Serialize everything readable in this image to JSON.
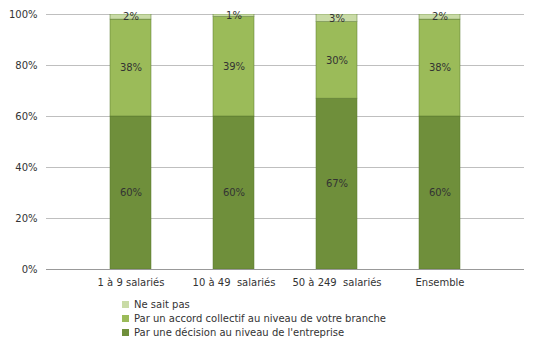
{
  "chart_data": {
    "type": "bar",
    "stacked": true,
    "categories": [
      "1 à 9 salariés",
      "10 à 49  salariés",
      "50 à 249  salariés",
      "Ensemble"
    ],
    "series": [
      {
        "name": "Par une décision au niveau de l'entreprise",
        "color": "#6f8f3b",
        "values": [
          60,
          60,
          67,
          60
        ],
        "value_labels": [
          "60%",
          "60%",
          "67%",
          "60%"
        ]
      },
      {
        "name": "Par un accord collectif au niveau de votre branche",
        "color": "#9bbb59",
        "values": [
          38,
          39,
          30,
          38
        ],
        "value_labels": [
          "38%",
          "39%",
          "30%",
          "38%"
        ]
      },
      {
        "name": "Ne sait pas",
        "color": "#c9dba6",
        "values": [
          2,
          1,
          3,
          2
        ],
        "value_labels": [
          "2%",
          "1%",
          "3%",
          "2%"
        ]
      }
    ],
    "ylim": [
      0,
      100
    ],
    "yticks": [
      {
        "value": 0,
        "label": "0%"
      },
      {
        "value": 20,
        "label": "20%"
      },
      {
        "value": 40,
        "label": "40%"
      },
      {
        "value": 60,
        "label": "60%"
      },
      {
        "value": 80,
        "label": "80%"
      },
      {
        "value": 100,
        "label": "100%"
      }
    ],
    "grid": true,
    "legend": "bottom",
    "data_labels": true
  }
}
